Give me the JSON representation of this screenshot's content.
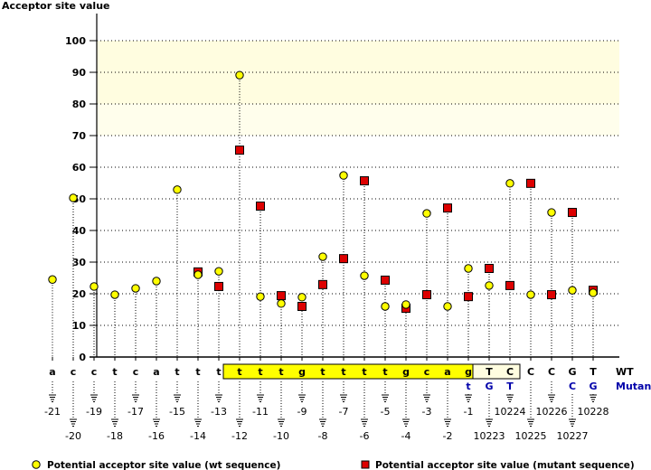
{
  "chart_data": {
    "type": "scatter",
    "title": "",
    "ylabel": "Acceptor site value",
    "xlabel": "",
    "ylim": [
      0,
      100
    ],
    "yticks": [
      0,
      10,
      20,
      30,
      40,
      50,
      60,
      70,
      80,
      90,
      100
    ],
    "grid": true,
    "highlight_bands": [
      {
        "from": 80,
        "to": 100,
        "color": "#FFFDE0"
      },
      {
        "from": 70,
        "to": 80,
        "color": "#FFFEEC"
      }
    ],
    "positions": [
      "-21",
      "-20",
      "-19",
      "-18",
      "-17",
      "-16",
      "-15",
      "-14",
      "-13",
      "-12",
      "-11",
      "-10",
      "-9",
      "-8",
      "-7",
      "-6",
      "-5",
      "-4",
      "-3",
      "-2",
      "-1",
      "10223",
      "10224",
      "10225",
      "10226",
      "10227",
      "10228"
    ],
    "wt_bases": [
      "a",
      "c",
      "c",
      "t",
      "c",
      "a",
      "t",
      "t",
      "t",
      "t",
      "t",
      "t",
      "g",
      "t",
      "t",
      "t",
      "t",
      "g",
      "c",
      "a",
      "g",
      "T",
      "C",
      "C",
      "C",
      "G",
      "T"
    ],
    "mutant_bases": [
      "",
      "",
      "",
      "",
      "",
      "",
      "",
      "",
      "",
      "",
      "",
      "",
      "",
      "",
      "",
      "",
      "",
      "",
      "",
      "",
      "t",
      "G",
      "T",
      "",
      "",
      "C",
      "G"
    ],
    "row_labels": {
      "wt": "WT",
      "mutant": "Mutant"
    },
    "series": [
      {
        "name": "Potential acceptor site value (wt sequence)",
        "marker": "circle",
        "color": "#FFFF00",
        "values": [
          24.5,
          50.3,
          22.3,
          19.7,
          21.7,
          24.0,
          52.9,
          26.0,
          27.1,
          89.1,
          19.1,
          16.9,
          18.9,
          31.7,
          57.4,
          25.7,
          16.0,
          16.6,
          45.4,
          16.0,
          28.0,
          22.6,
          54.9,
          19.7,
          45.7,
          21.1,
          20.3
        ]
      },
      {
        "name": "Potential acceptor site value (mutant sequence)",
        "marker": "square",
        "color": "#DD0000",
        "values": [
          null,
          null,
          null,
          null,
          null,
          null,
          null,
          26.9,
          22.3,
          65.4,
          47.7,
          19.4,
          16.0,
          22.9,
          31.1,
          55.7,
          24.3,
          15.4,
          19.7,
          47.1,
          19.1,
          28.0,
          22.6,
          54.9,
          19.7,
          45.7,
          21.1
        ]
      }
    ],
    "sequence_boxes": [
      {
        "from_index": 9,
        "to_index": 20,
        "color": "#FFFF00"
      },
      {
        "from_index": 21,
        "to_index": 22,
        "color": "#FFFDE0"
      }
    ],
    "mutant_color": "#0000AA"
  }
}
